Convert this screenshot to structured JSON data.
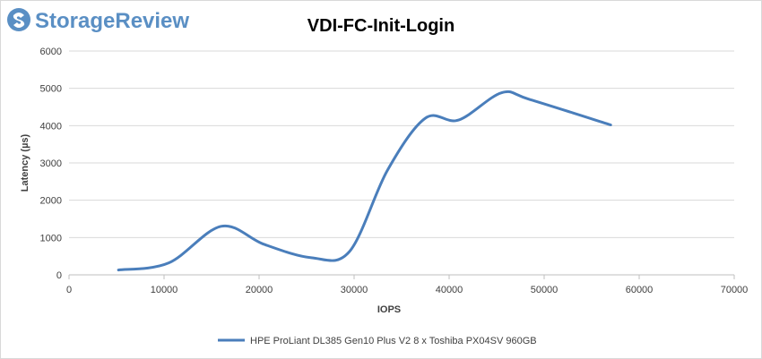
{
  "brand": {
    "name": "StorageReview",
    "logo_icon": "storagereview-logo-icon",
    "brand_color": "#5a8fc4"
  },
  "chart_data": {
    "type": "line",
    "title": "VDI-FC-Init-Login",
    "xlabel": "IOPS",
    "ylabel": "Latency (µs)",
    "xlim": [
      0,
      70000
    ],
    "ylim": [
      0,
      6000
    ],
    "x_ticks": [
      0,
      10000,
      20000,
      30000,
      40000,
      50000,
      60000,
      70000
    ],
    "y_ticks": [
      0,
      1000,
      2000,
      3000,
      4000,
      5000,
      6000
    ],
    "grid": "horizontal",
    "legend_position": "bottom",
    "series": [
      {
        "name": "HPE ProLiant DL385 Gen10 Plus V2 8 x Toshiba PX04SV 960GB",
        "color": "#4a7ebb",
        "x": [
          5200,
          10500,
          16000,
          20500,
          25500,
          29500,
          33500,
          37500,
          41000,
          45500,
          48500,
          57000
        ],
        "y": [
          130,
          320,
          1300,
          820,
          460,
          620,
          2800,
          4200,
          4150,
          4880,
          4700,
          4020
        ]
      }
    ]
  }
}
